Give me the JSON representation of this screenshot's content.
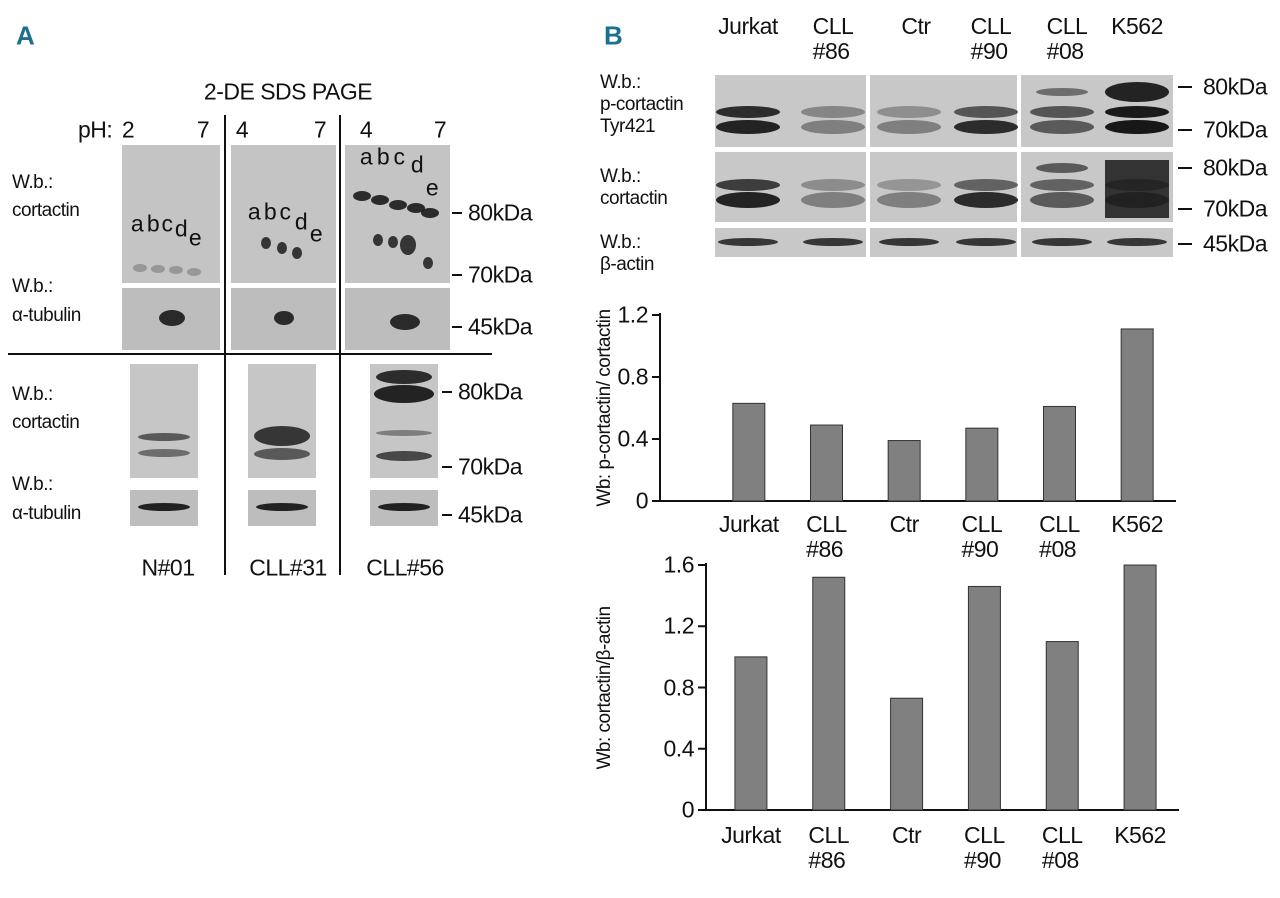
{
  "panel_a": {
    "label": "A",
    "title": "2-DE SDS PAGE",
    "ph_label": "pH:",
    "ph_ranges": [
      [
        "2",
        "7"
      ],
      [
        "4",
        "7"
      ],
      [
        "4",
        "7"
      ]
    ],
    "spot_letters": [
      "a",
      "b",
      "c",
      "d",
      "e"
    ],
    "wb_prefix": "W.b.:",
    "cortactin": "cortactin",
    "tubulin": "α-tubulin",
    "upper_markers": [
      "80kDa",
      "70kDa",
      "45kDa"
    ],
    "lower_markers": [
      "80kDa",
      "70kDa",
      "45kDa"
    ],
    "samples": [
      "N#01",
      "CLL#31",
      "CLL#56"
    ]
  },
  "panel_b": {
    "label": "B",
    "lanes": [
      "Jurkat",
      "CLL\n#86",
      "Ctr",
      "CLL\n#90",
      "CLL\n#08",
      "K562"
    ],
    "rows": [
      "W.b.:\np-cortactin\nTyr421",
      "W.b.:\ncortactin",
      "W.b.:\nβ-actin"
    ],
    "markers": [
      "80kDa",
      "70kDa",
      "80kDa",
      "70kDa",
      "45kDa"
    ]
  },
  "chart_data": [
    {
      "type": "bar",
      "y_label": "Wb: p-cortactin/ cortactin",
      "categories": [
        "Jurkat",
        "CLL\n#86",
        "Ctr",
        "CLL\n#90",
        "CLL\n#08",
        "K562"
      ],
      "values": [
        0.63,
        0.49,
        0.39,
        0.47,
        0.61,
        1.11
      ],
      "color": "#808080",
      "ylim": [
        0,
        1.2
      ],
      "yticks": [
        0,
        0.4,
        0.8,
        1.2
      ]
    },
    {
      "type": "bar",
      "y_label": "Wb: cortactin/β-actin",
      "categories": [
        "Jurkat",
        "CLL\n#86",
        "Ctr",
        "CLL\n#90",
        "CLL\n#08",
        "K562"
      ],
      "values": [
        1.0,
        1.52,
        0.73,
        1.46,
        1.1,
        1.6
      ],
      "color": "#808080",
      "ylim": [
        0,
        1.6
      ],
      "yticks": [
        0,
        0.4,
        0.8,
        1.2,
        1.6
      ]
    }
  ]
}
